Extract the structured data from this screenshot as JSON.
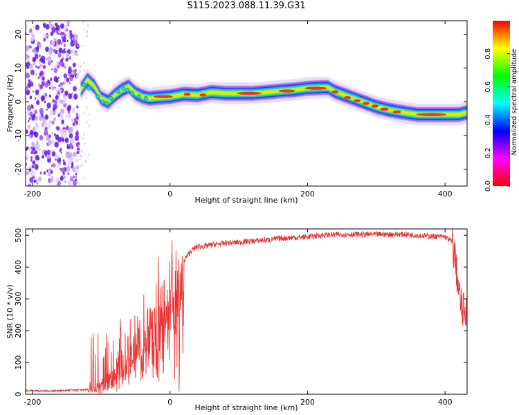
{
  "title": "S115.2023.088.11.39.G31",
  "chart_data": [
    {
      "type": "heatmap",
      "title": "S115.2023.088.11.39.G31",
      "xlabel": "Height of straight line (km)",
      "ylabel": "Frequency (Hz)",
      "xlim": [
        -210,
        432
      ],
      "ylim": [
        -25,
        24
      ],
      "xticks": [
        -200,
        0,
        200,
        400
      ],
      "yticks": [
        20,
        10,
        0,
        -10,
        -20
      ],
      "grid": false,
      "colorbar": {
        "label": "Normalized spectral amplitude",
        "range": [
          0,
          1
        ],
        "ticks": [
          0.0,
          0.2,
          0.4,
          0.6,
          0.8
        ],
        "colormap": [
          "#ff0000",
          "#ff00ff",
          "#0000ff",
          "#00ffff",
          "#00ff00",
          "#ffff00",
          "#ff0000"
        ]
      },
      "noise_region": {
        "x_from": -210,
        "x_to": -133,
        "color": "#7a1ff0"
      },
      "ridge": {
        "x": [
          -130,
          -120,
          -110,
          -100,
          -90,
          -80,
          -70,
          -60,
          -50,
          -40,
          -30,
          -20,
          0,
          20,
          40,
          60,
          80,
          100,
          120,
          140,
          160,
          180,
          200,
          220,
          230,
          240,
          260,
          280,
          300,
          320,
          340,
          360,
          380,
          400,
          420,
          432
        ],
        "freq": [
          3.5,
          6.5,
          4.5,
          1.0,
          0.0,
          2.0,
          3.5,
          4.5,
          2.5,
          1.5,
          1.0,
          1.2,
          1.5,
          2.2,
          2.0,
          2.8,
          2.5,
          2.5,
          2.5,
          2.8,
          3.2,
          3.5,
          4.0,
          4.2,
          4.2,
          3.0,
          1.5,
          0.0,
          -1.5,
          -2.5,
          -3.2,
          -3.8,
          -3.8,
          -3.8,
          -3.8,
          -3.2
        ]
      }
    },
    {
      "type": "line",
      "xlabel": "Height of straight line (km)",
      "ylabel": "SNR (10 * v/v)",
      "xlim": [
        -210,
        432
      ],
      "ylim": [
        0,
        520
      ],
      "xticks": [
        -200,
        0,
        200,
        400
      ],
      "yticks": [
        0,
        100,
        200,
        300,
        400,
        500
      ],
      "grid": false,
      "series": [
        {
          "color": "#e83535",
          "x": [
            -210,
            -180,
            -150,
            -120,
            -110,
            -100,
            -90,
            -80,
            -70,
            -60,
            -50,
            -40,
            -30,
            -20,
            -10,
            0,
            10,
            20,
            30,
            40,
            50,
            60,
            80,
            100,
            120,
            140,
            160,
            180,
            200,
            220,
            240,
            260,
            280,
            300,
            320,
            340,
            360,
            380,
            400,
            410,
            415,
            420,
            425,
            432
          ],
          "y": [
            12,
            10,
            12,
            15,
            25,
            40,
            60,
            75,
            100,
            140,
            170,
            200,
            240,
            270,
            300,
            310,
            370,
            420,
            450,
            465,
            465,
            470,
            475,
            478,
            482,
            485,
            490,
            493,
            495,
            500,
            502,
            503,
            503,
            503,
            503,
            503,
            500,
            497,
            495,
            480,
            420,
            320,
            260,
            270
          ]
        }
      ]
    }
  ]
}
